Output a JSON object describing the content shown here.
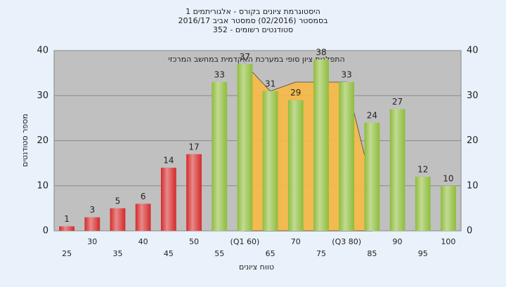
{
  "chart_data": {
    "type": "bar",
    "title": "היסטוגרמת ציונים בקורס - אלגוריתמים 1",
    "subtitle": "בסמסטר (02/2016) סמסטר אביב 2016/17",
    "subtitle2": "סטודנטים רשומים - 352",
    "annotation": "התפלגות ציון סופי במערכת האקדמית במחשב המרכזי",
    "x_label": "טווח ציונים",
    "y_label": "מספר סטודנטים",
    "categories": [
      "25",
      "30",
      "35",
      "40",
      "45",
      "50",
      "55",
      "(Q1 60)",
      "65",
      "70",
      "75",
      "(Q3 80)",
      "85",
      "90",
      "95",
      "100"
    ],
    "values": [
      1,
      3,
      5,
      6,
      14,
      17,
      33,
      37,
      31,
      29,
      38,
      33,
      24,
      27,
      12,
      10
    ],
    "colors": [
      "#d42a2a",
      "#d42a2a",
      "#d42a2a",
      "#d42a2a",
      "#d42a2a",
      "#d42a2a",
      "#8fbc3b",
      "#8fbc3b",
      "#8fbc3b",
      "#8fbc3b",
      "#8fbc3b",
      "#8fbc3b",
      "#8fbc3b",
      "#8fbc3b",
      "#8fbc3b",
      "#8fbc3b"
    ],
    "area": {
      "color": "#f7b944",
      "values": [
        null,
        null,
        null,
        null,
        null,
        null,
        null,
        37,
        31,
        33,
        33,
        33,
        10,
        null,
        null,
        null
      ]
    },
    "ylim": [
      0,
      40
    ],
    "yticks": [
      0,
      10,
      20,
      30,
      40
    ],
    "grid": true
  }
}
